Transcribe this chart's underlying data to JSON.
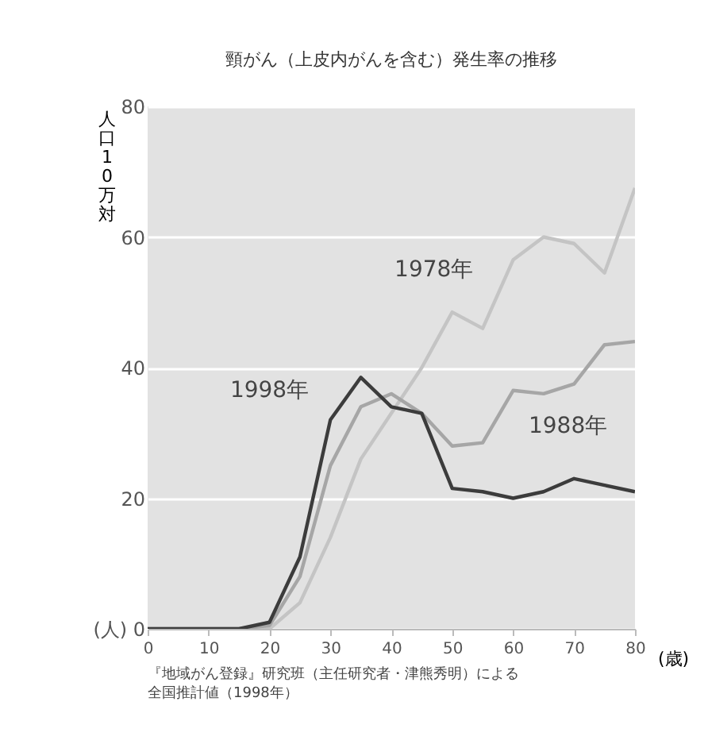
{
  "chart_data": {
    "type": "line",
    "title": "頸がん（上皮内がんを含む）発生率の推移",
    "ylabel": "人口10万対",
    "xlabel": "(歳)",
    "x": [
      0,
      5,
      10,
      15,
      20,
      25,
      30,
      35,
      40,
      45,
      50,
      55,
      60,
      65,
      70,
      75,
      80
    ],
    "series": [
      {
        "name": "1978年",
        "color": "#c4c4c4",
        "values": [
          0,
          0,
          0,
          0,
          0,
          4,
          14,
          26,
          33,
          40,
          48.5,
          46,
          56.5,
          60,
          59,
          54.5,
          67.5
        ]
      },
      {
        "name": "1988年",
        "color": "#a6a6a6",
        "values": [
          0,
          0,
          0,
          0,
          0.5,
          8,
          25,
          34,
          36,
          33,
          28,
          28.5,
          36.5,
          36,
          37.5,
          43.5,
          44
        ]
      },
      {
        "name": "1998年",
        "color": "#3c3c3c",
        "values": [
          0,
          0,
          0,
          0,
          1,
          11,
          32,
          38.5,
          34,
          33,
          21.5,
          21,
          20,
          21,
          23,
          22,
          21
        ]
      }
    ],
    "xlim": [
      0,
      80
    ],
    "xticks": [
      0,
      10,
      20,
      30,
      40,
      50,
      60,
      70,
      80
    ],
    "ylim": [
      0,
      80
    ],
    "yticks": [
      {
        "value": 0,
        "label": "(人) 0"
      },
      20,
      40,
      60,
      80
    ],
    "grid": "y",
    "legend": false,
    "marker": "none",
    "line_style": "solid",
    "annotations": [
      "『地域がん登録』研究班（主任研究者・津熊秀明）による",
      "全国推計値（1998年）"
    ]
  }
}
